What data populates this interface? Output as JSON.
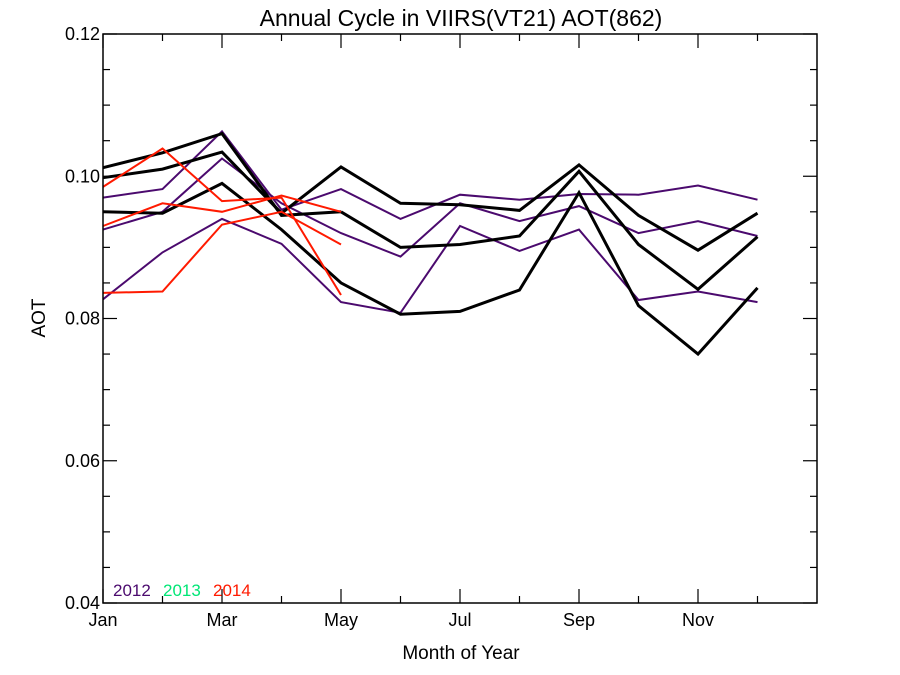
{
  "chart_data": {
    "type": "line",
    "title": "Annual Cycle in VIIRS(VT21) AOT(862)",
    "xlabel": "Month of Year",
    "ylabel": "AOT",
    "xlim": [
      1,
      13
    ],
    "ylim": [
      0.04,
      0.12
    ],
    "x_ticks": [
      {
        "value": 1,
        "label": "Jan"
      },
      {
        "value": 3,
        "label": "Mar"
      },
      {
        "value": 5,
        "label": "May"
      },
      {
        "value": 7,
        "label": "Jul"
      },
      {
        "value": 9,
        "label": "Sep"
      },
      {
        "value": 11,
        "label": "Nov"
      }
    ],
    "x_minor_ticks": [
      2,
      4,
      6,
      8,
      10,
      12
    ],
    "y_ticks": [
      {
        "value": 0.04,
        "label": "0.04"
      },
      {
        "value": 0.06,
        "label": "0.06"
      },
      {
        "value": 0.08,
        "label": "0.08"
      },
      {
        "value": 0.1,
        "label": "0.10"
      },
      {
        "value": 0.12,
        "label": "0.12"
      }
    ],
    "y_minor_ticks": [
      0.045,
      0.05,
      0.055,
      0.065,
      0.07,
      0.075,
      0.085,
      0.09,
      0.095,
      0.105,
      0.11,
      0.115
    ],
    "grid": false,
    "legend_position": "bottom-left",
    "legend": [
      {
        "label": "2012",
        "color": "#4B0A6E"
      },
      {
        "label": "2013",
        "color": "#00E676"
      },
      {
        "label": "2014",
        "color": "#FF1A00"
      }
    ],
    "series": [
      {
        "color": "#4B0A6E",
        "width": 2,
        "x": [
          1,
          2,
          3,
          4,
          5,
          6,
          7,
          8,
          9,
          10,
          11,
          12
        ],
        "y": [
          0.097,
          0.0982,
          0.1063,
          0.0953,
          0.0982,
          0.094,
          0.0974,
          0.0967,
          0.0975,
          0.0974,
          0.0987,
          0.0967
        ]
      },
      {
        "color": "#4B0A6E",
        "width": 2,
        "x": [
          1,
          2,
          3,
          4,
          5,
          6,
          7,
          8,
          9,
          10,
          11,
          12
        ],
        "y": [
          0.0925,
          0.095,
          0.1025,
          0.0962,
          0.092,
          0.0887,
          0.0962,
          0.0937,
          0.0958,
          0.092,
          0.0937,
          0.0916
        ]
      },
      {
        "color": "#4B0A6E",
        "width": 2,
        "x": [
          1,
          2,
          3,
          4,
          5,
          6,
          7,
          8,
          9,
          10,
          11,
          12
        ],
        "y": [
          0.0827,
          0.0893,
          0.094,
          0.0905,
          0.0823,
          0.0808,
          0.093,
          0.0895,
          0.0925,
          0.0826,
          0.0838,
          0.0823
        ]
      },
      {
        "color": "#000000",
        "width": 3,
        "x": [
          1,
          2,
          3,
          4,
          5
        ],
        "y": [
          0.1012,
          0.1033,
          0.106,
          0.0945,
          0.095
        ]
      },
      {
        "color": "#000000",
        "width": 3,
        "x": [
          1,
          2,
          3,
          4,
          5,
          6,
          7,
          8,
          9,
          10,
          11,
          12
        ],
        "y": [
          0.0998,
          0.101,
          0.1034,
          0.0948,
          0.1013,
          0.0962,
          0.096,
          0.0952,
          0.1016,
          0.0945,
          0.0896,
          0.0948
        ]
      },
      {
        "color": "#000000",
        "width": 3,
        "x": [
          1,
          2,
          3,
          4,
          5,
          6,
          7,
          8,
          9,
          10,
          11,
          12
        ],
        "y": [
          0.095,
          0.0948,
          0.099,
          0.0925,
          0.085,
          0.0806,
          0.081,
          0.084,
          0.0977,
          0.0818,
          0.075,
          0.0843
        ]
      },
      {
        "color": "#000000",
        "width": 3,
        "x": [
          5,
          6,
          7,
          8,
          9,
          10,
          11,
          12
        ],
        "y": [
          0.095,
          0.09,
          0.0904,
          0.0916,
          0.1007,
          0.0904,
          0.0841,
          0.0915
        ]
      },
      {
        "color": "#FF1A00",
        "width": 2,
        "x": [
          1,
          2,
          3,
          4,
          5
        ],
        "y": [
          0.0985,
          0.1039,
          0.0965,
          0.097,
          0.0833
        ]
      },
      {
        "color": "#FF1A00",
        "width": 2,
        "x": [
          1,
          2,
          3,
          4,
          5
        ],
        "y": [
          0.093,
          0.0962,
          0.095,
          0.0973,
          0.095
        ]
      },
      {
        "color": "#FF1A00",
        "width": 2,
        "x": [
          1,
          2,
          3,
          4,
          5
        ],
        "y": [
          0.0836,
          0.0838,
          0.0932,
          0.095,
          0.0904
        ]
      }
    ]
  }
}
